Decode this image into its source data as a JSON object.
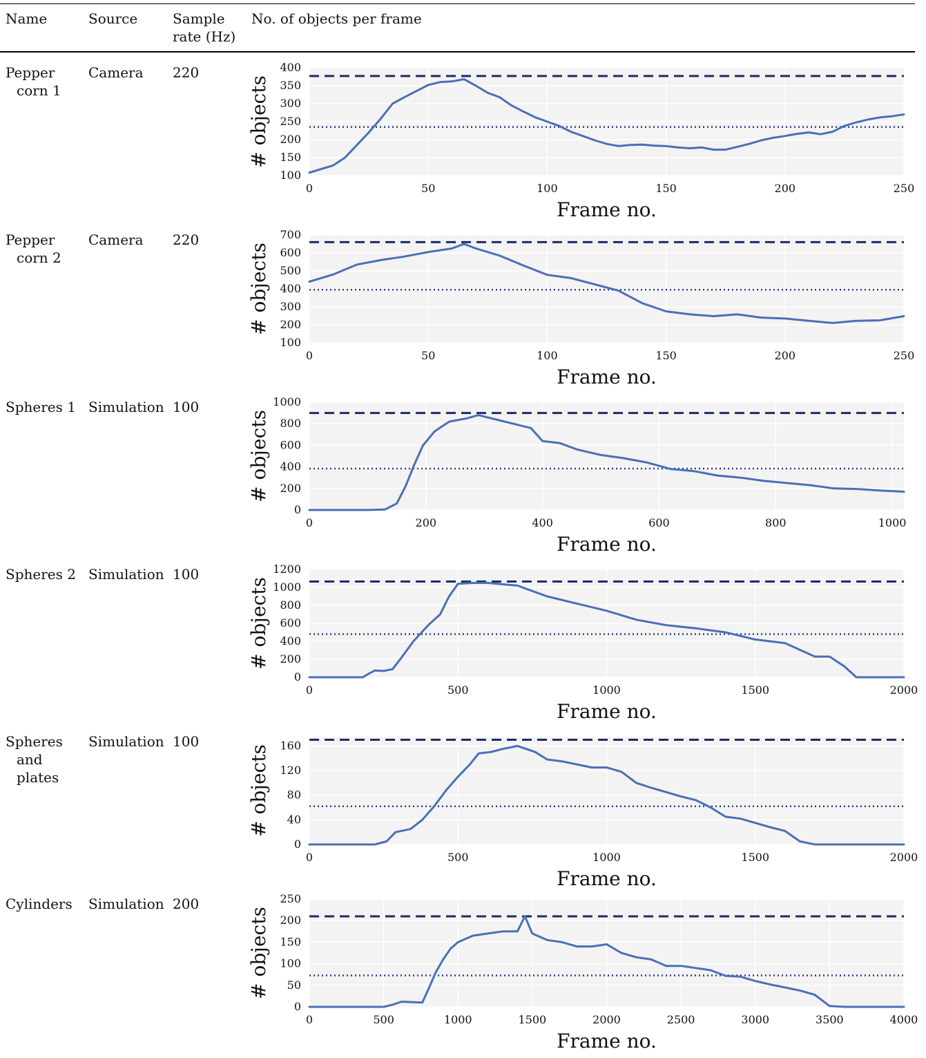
{
  "table": {
    "headers": {
      "name": "Name",
      "source": "Source",
      "sample_rate_line1": "Sample",
      "sample_rate_line2": "rate (Hz)",
      "objects": "No. of objects per frame"
    },
    "rows": [
      {
        "name_lines": [
          "Pepper",
          "corn 1"
        ],
        "source": "Camera",
        "sample_rate": "220"
      },
      {
        "name_lines": [
          "Pepper",
          "corn 2"
        ],
        "source": "Camera",
        "sample_rate": "220"
      },
      {
        "name_lines": [
          "Spheres 1"
        ],
        "source": "Simulation",
        "sample_rate": "100"
      },
      {
        "name_lines": [
          "Spheres 2"
        ],
        "source": "Simulation",
        "sample_rate": "100"
      },
      {
        "name_lines": [
          "Spheres",
          "and",
          "plates"
        ],
        "source": "Simulation",
        "sample_rate": "100"
      },
      {
        "name_lines": [
          "Cylinders"
        ],
        "source": "Simulation",
        "sample_rate": "200"
      }
    ]
  },
  "colors": {
    "series": "#4A6FB5",
    "max_line": "#1B2A6B",
    "mean_line": "#2B3A8F",
    "plot_bg": "#F3F3F3",
    "grid": "#FFFFFF"
  },
  "chart_data": [
    {
      "type": "line",
      "xlabel": "Frame no.",
      "ylabel": "# objects",
      "xlim": [
        0,
        250
      ],
      "ylim": [
        100,
        400
      ],
      "xticks": [
        0,
        50,
        100,
        150,
        200,
        250
      ],
      "yticks": [
        100,
        150,
        200,
        250,
        300,
        350,
        400
      ],
      "max_line": 377,
      "mean_line": 235,
      "series": [
        {
          "points": [
            [
              0,
              108
            ],
            [
              5,
              118
            ],
            [
              10,
              128
            ],
            [
              15,
              150
            ],
            [
              20,
              185
            ],
            [
              25,
              220
            ],
            [
              30,
              258
            ],
            [
              35,
              300
            ],
            [
              40,
              318
            ],
            [
              45,
              335
            ],
            [
              50,
              352
            ],
            [
              55,
              360
            ],
            [
              60,
              362
            ],
            [
              65,
              368
            ],
            [
              70,
              350
            ],
            [
              75,
              330
            ],
            [
              80,
              318
            ],
            [
              85,
              295
            ],
            [
              90,
              278
            ],
            [
              95,
              262
            ],
            [
              100,
              250
            ],
            [
              105,
              238
            ],
            [
              110,
              222
            ],
            [
              115,
              210
            ],
            [
              120,
              198
            ],
            [
              125,
              188
            ],
            [
              130,
              182
            ],
            [
              135,
              185
            ],
            [
              140,
              186
            ],
            [
              145,
              183
            ],
            [
              150,
              182
            ],
            [
              155,
              178
            ],
            [
              160,
              176
            ],
            [
              165,
              178
            ],
            [
              170,
              172
            ],
            [
              175,
              172
            ],
            [
              180,
              180
            ],
            [
              185,
              188
            ],
            [
              190,
              198
            ],
            [
              195,
              205
            ],
            [
              200,
              210
            ],
            [
              205,
              216
            ],
            [
              210,
              220
            ],
            [
              215,
              215
            ],
            [
              220,
              222
            ],
            [
              225,
              238
            ],
            [
              230,
              248
            ],
            [
              235,
              256
            ],
            [
              240,
              262
            ],
            [
              245,
              265
            ],
            [
              250,
              270
            ]
          ]
        }
      ]
    },
    {
      "type": "line",
      "xlabel": "Frame no.",
      "ylabel": "# objects",
      "xlim": [
        0,
        250
      ],
      "ylim": [
        100,
        700
      ],
      "xticks": [
        0,
        50,
        100,
        150,
        200,
        250
      ],
      "yticks": [
        100,
        200,
        300,
        400,
        500,
        600,
        700
      ],
      "max_line": 660,
      "mean_line": 395,
      "series": [
        {
          "points": [
            [
              0,
              440
            ],
            [
              10,
              480
            ],
            [
              20,
              535
            ],
            [
              30,
              560
            ],
            [
              40,
              580
            ],
            [
              50,
              605
            ],
            [
              60,
              625
            ],
            [
              65,
              650
            ],
            [
              70,
              625
            ],
            [
              80,
              585
            ],
            [
              90,
              530
            ],
            [
              100,
              478
            ],
            [
              110,
              460
            ],
            [
              120,
              425
            ],
            [
              130,
              390
            ],
            [
              140,
              320
            ],
            [
              150,
              275
            ],
            [
              160,
              258
            ],
            [
              170,
              248
            ],
            [
              180,
              258
            ],
            [
              190,
              240
            ],
            [
              200,
              235
            ],
            [
              210,
              222
            ],
            [
              220,
              210
            ],
            [
              230,
              222
            ],
            [
              240,
              225
            ],
            [
              250,
              248
            ]
          ]
        }
      ]
    },
    {
      "type": "line",
      "xlabel": "Frame no.",
      "ylabel": "# objects",
      "xlim": [
        0,
        1020
      ],
      "ylim": [
        0,
        1000
      ],
      "xticks": [
        0,
        200,
        400,
        600,
        800,
        1000
      ],
      "yticks": [
        0,
        200,
        400,
        600,
        800,
        1000
      ],
      "max_line": 900,
      "mean_line": 385,
      "series": [
        {
          "points": [
            [
              0,
              0
            ],
            [
              100,
              0
            ],
            [
              130,
              5
            ],
            [
              150,
              60
            ],
            [
              165,
              220
            ],
            [
              180,
              420
            ],
            [
              195,
              600
            ],
            [
              215,
              730
            ],
            [
              240,
              820
            ],
            [
              270,
              850
            ],
            [
              290,
              880
            ],
            [
              320,
              840
            ],
            [
              350,
              800
            ],
            [
              380,
              760
            ],
            [
              400,
              640
            ],
            [
              430,
              620
            ],
            [
              460,
              560
            ],
            [
              500,
              510
            ],
            [
              540,
              480
            ],
            [
              580,
              440
            ],
            [
              620,
              380
            ],
            [
              660,
              360
            ],
            [
              700,
              320
            ],
            [
              740,
              300
            ],
            [
              780,
              270
            ],
            [
              820,
              250
            ],
            [
              860,
              230
            ],
            [
              900,
              200
            ],
            [
              940,
              195
            ],
            [
              980,
              180
            ],
            [
              1020,
              170
            ]
          ]
        }
      ]
    },
    {
      "type": "line",
      "xlabel": "Frame no.",
      "ylabel": "# objects",
      "xlim": [
        0,
        2000
      ],
      "ylim": [
        0,
        1200
      ],
      "xticks": [
        0,
        500,
        1000,
        1500,
        2000
      ],
      "yticks": [
        0,
        200,
        400,
        600,
        800,
        1000,
        1200
      ],
      "max_line": 1065,
      "mean_line": 480,
      "series": [
        {
          "points": [
            [
              0,
              0
            ],
            [
              180,
              0
            ],
            [
              200,
              40
            ],
            [
              220,
              75
            ],
            [
              250,
              70
            ],
            [
              280,
              90
            ],
            [
              310,
              220
            ],
            [
              350,
              400
            ],
            [
              400,
              580
            ],
            [
              440,
              700
            ],
            [
              470,
              900
            ],
            [
              500,
              1040
            ],
            [
              550,
              1050
            ],
            [
              600,
              1050
            ],
            [
              700,
              1020
            ],
            [
              800,
              900
            ],
            [
              900,
              820
            ],
            [
              1000,
              740
            ],
            [
              1100,
              640
            ],
            [
              1200,
              580
            ],
            [
              1300,
              545
            ],
            [
              1400,
              500
            ],
            [
              1500,
              420
            ],
            [
              1600,
              380
            ],
            [
              1700,
              230
            ],
            [
              1750,
              230
            ],
            [
              1800,
              120
            ],
            [
              1840,
              0
            ],
            [
              2000,
              0
            ]
          ]
        }
      ]
    },
    {
      "type": "line",
      "xlabel": "Frame no.",
      "ylabel": "# objects",
      "xlim": [
        0,
        2000
      ],
      "ylim": [
        0,
        175
      ],
      "xticks": [
        0,
        500,
        1000,
        1500,
        2000
      ],
      "yticks": [
        0,
        40,
        80,
        120,
        160
      ],
      "max_line": 170,
      "mean_line": 62,
      "series": [
        {
          "points": [
            [
              0,
              0
            ],
            [
              220,
              0
            ],
            [
              260,
              5
            ],
            [
              290,
              20
            ],
            [
              340,
              25
            ],
            [
              380,
              40
            ],
            [
              420,
              62
            ],
            [
              460,
              88
            ],
            [
              500,
              110
            ],
            [
              540,
              130
            ],
            [
              570,
              148
            ],
            [
              610,
              150
            ],
            [
              650,
              155
            ],
            [
              700,
              160
            ],
            [
              760,
              150
            ],
            [
              800,
              138
            ],
            [
              850,
              135
            ],
            [
              900,
              130
            ],
            [
              950,
              125
            ],
            [
              1000,
              125
            ],
            [
              1050,
              118
            ],
            [
              1100,
              100
            ],
            [
              1150,
              92
            ],
            [
              1200,
              85
            ],
            [
              1250,
              78
            ],
            [
              1300,
              72
            ],
            [
              1350,
              60
            ],
            [
              1400,
              45
            ],
            [
              1450,
              42
            ],
            [
              1500,
              35
            ],
            [
              1550,
              28
            ],
            [
              1600,
              22
            ],
            [
              1650,
              5
            ],
            [
              1700,
              0
            ],
            [
              2000,
              0
            ]
          ]
        }
      ]
    },
    {
      "type": "line",
      "xlabel": "Frame no.",
      "ylabel": "# objects",
      "xlim": [
        0,
        4000
      ],
      "ylim": [
        0,
        250
      ],
      "xticks": [
        0,
        500,
        1000,
        1500,
        2000,
        2500,
        3000,
        3500,
        4000
      ],
      "yticks": [
        0,
        50,
        100,
        150,
        200,
        250
      ],
      "max_line": 210,
      "mean_line": 73,
      "series": [
        {
          "points": [
            [
              0,
              0
            ],
            [
              500,
              0
            ],
            [
              560,
              5
            ],
            [
              620,
              12
            ],
            [
              760,
              10
            ],
            [
              800,
              40
            ],
            [
              850,
              80
            ],
            [
              900,
              110
            ],
            [
              950,
              135
            ],
            [
              1000,
              150
            ],
            [
              1100,
              165
            ],
            [
              1200,
              170
            ],
            [
              1300,
              175
            ],
            [
              1400,
              175
            ],
            [
              1450,
              210
            ],
            [
              1500,
              170
            ],
            [
              1600,
              155
            ],
            [
              1700,
              150
            ],
            [
              1800,
              140
            ],
            [
              1900,
              140
            ],
            [
              2000,
              145
            ],
            [
              2100,
              125
            ],
            [
              2200,
              115
            ],
            [
              2300,
              110
            ],
            [
              2400,
              95
            ],
            [
              2500,
              95
            ],
            [
              2600,
              90
            ],
            [
              2700,
              85
            ],
            [
              2800,
              72
            ],
            [
              2900,
              70
            ],
            [
              3000,
              60
            ],
            [
              3100,
              52
            ],
            [
              3200,
              45
            ],
            [
              3300,
              38
            ],
            [
              3400,
              28
            ],
            [
              3500,
              2
            ],
            [
              3600,
              0
            ],
            [
              4000,
              0
            ]
          ]
        }
      ]
    }
  ]
}
